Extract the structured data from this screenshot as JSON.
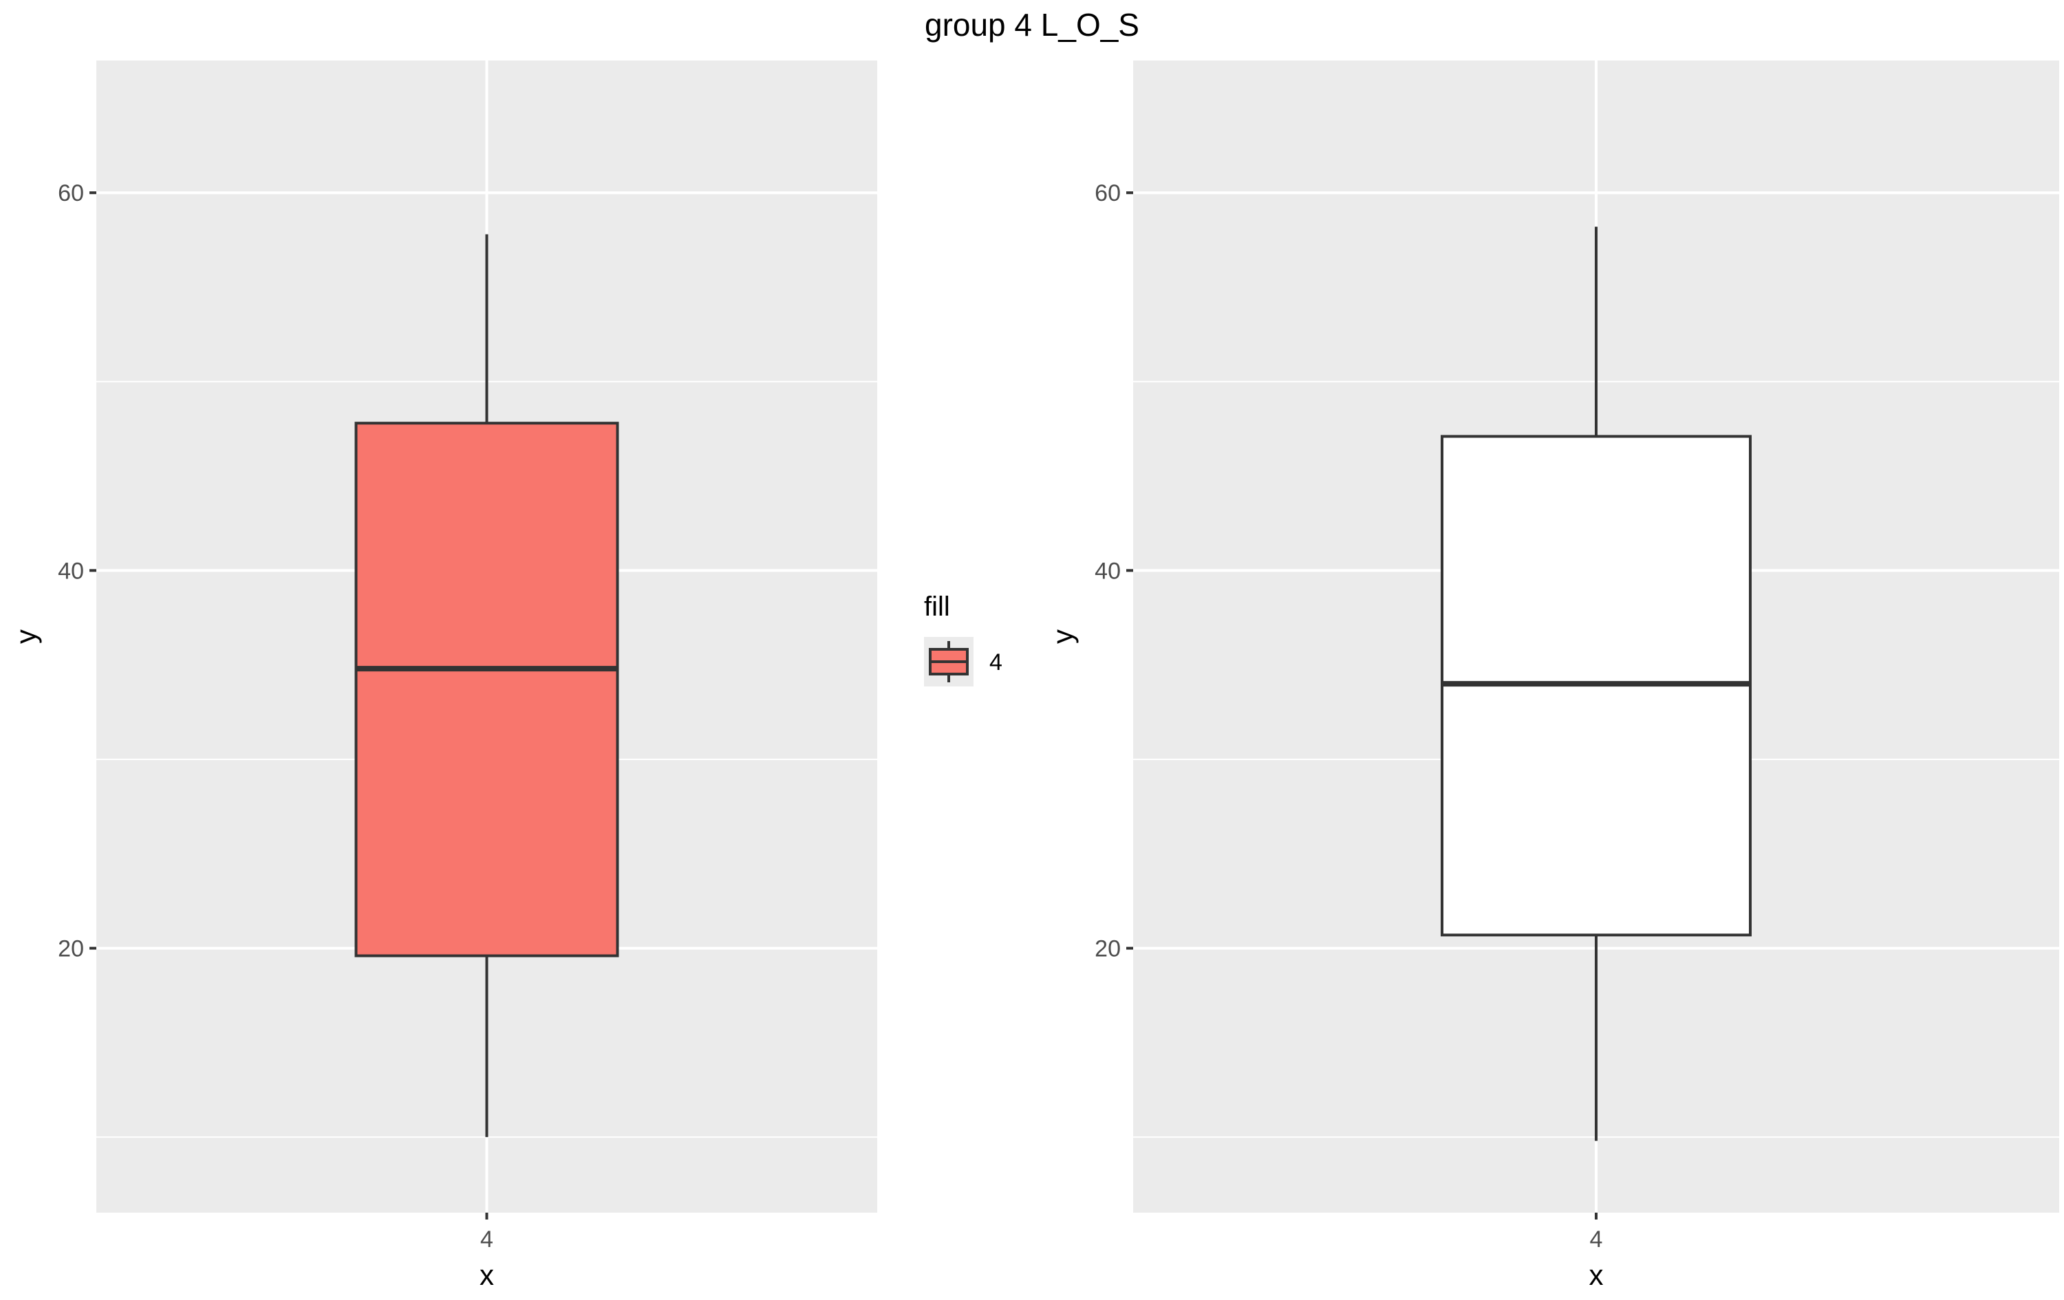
{
  "title": "group 4 L_O_S",
  "colors": {
    "panel_background": "#EBEBEB",
    "gridline": "#FFFFFF",
    "box_outline": "#333333",
    "fill_group_4": "#F8766D",
    "plain_fill": "#FFFFFF"
  },
  "legend": {
    "title": "fill",
    "items": [
      {
        "label": "4",
        "color": "#F8766D"
      }
    ],
    "placement": "between panels, center"
  },
  "chart_data": [
    {
      "type": "boxplot",
      "title": "",
      "xlabel": "x",
      "ylabel": "y",
      "categories": [
        "4"
      ],
      "ylim": [
        6,
        67
      ],
      "yticks": [
        20,
        40,
        60
      ],
      "ytick_labels": [
        "20",
        "40",
        "60"
      ],
      "grid": true,
      "fill": "#F8766D",
      "boxes": [
        {
          "category": "4",
          "min": 10,
          "q1": 19.6,
          "median": 34.8,
          "q3": 47.8,
          "max": 57.8
        }
      ]
    },
    {
      "type": "boxplot",
      "title": "",
      "xlabel": "x",
      "ylabel": "y",
      "categories": [
        "4"
      ],
      "ylim": [
        6,
        67
      ],
      "yticks": [
        20,
        40,
        60
      ],
      "ytick_labels": [
        "20",
        "40",
        "60"
      ],
      "grid": true,
      "fill": "#FFFFFF",
      "boxes": [
        {
          "category": "4",
          "min": 9.8,
          "q1": 20.7,
          "median": 34.0,
          "q3": 47.1,
          "max": 58.2
        }
      ]
    }
  ]
}
